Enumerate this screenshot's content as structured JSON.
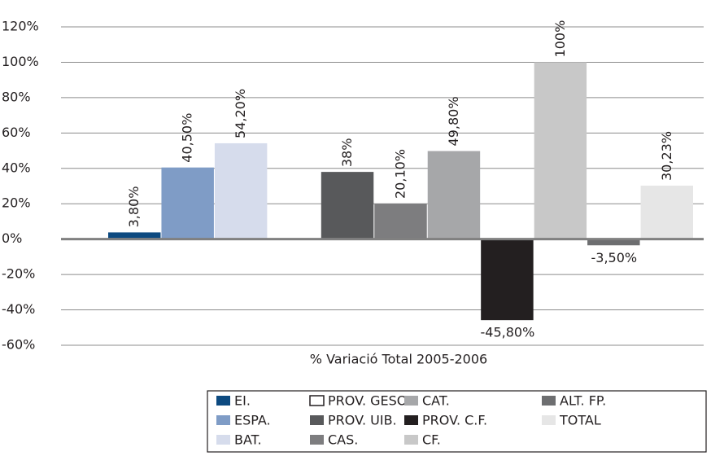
{
  "chart_data": {
    "type": "bar",
    "categories": [
      "% Variació Total 2005-2006"
    ],
    "series": [
      {
        "name": "EI.",
        "color": "#0d4a80",
        "values": [
          3.8
        ],
        "value_labels": [
          "3,80%"
        ]
      },
      {
        "name": "ESPA.",
        "color": "#7f9cc6",
        "values": [
          40.5
        ],
        "value_labels": [
          "40,50%"
        ]
      },
      {
        "name": "BAT.",
        "color": "#d6dcec",
        "values": [
          54.2
        ],
        "value_labels": [
          "54,20%"
        ]
      },
      {
        "name": "PROV. GESO.",
        "color": "#ffffff",
        "values": [
          null
        ],
        "value_labels": [
          null
        ]
      },
      {
        "name": "PROV. UIB.",
        "color": "#58595b",
        "values": [
          38
        ],
        "value_labels": [
          "38%"
        ]
      },
      {
        "name": "CAS.",
        "color": "#7d7d7f",
        "values": [
          20.1
        ],
        "value_labels": [
          "20,10%"
        ]
      },
      {
        "name": "CAT.",
        "color": "#a6a7a9",
        "values": [
          49.8
        ],
        "value_labels": [
          "49,80%"
        ]
      },
      {
        "name": "PROV. C.F.",
        "color": "#231f20",
        "values": [
          -45.8
        ],
        "value_labels": [
          "-45,80%"
        ]
      },
      {
        "name": "CF.",
        "color": "#c8c8c8",
        "values": [
          100
        ],
        "value_labels": [
          "100%"
        ]
      },
      {
        "name": "ALT. FP.",
        "color": "#6d6e70",
        "values": [
          -3.5
        ],
        "value_labels": [
          "-3,50%"
        ]
      },
      {
        "name": "TOTAL",
        "color": "#e6e6e6",
        "values": [
          30.23
        ],
        "value_labels": [
          "30,23%"
        ]
      }
    ],
    "ylim": [
      -60,
      120
    ],
    "yticks": [
      {
        "value": -60,
        "label": "-60%"
      },
      {
        "value": -40,
        "label": "-40%"
      },
      {
        "value": -20,
        "label": "-20%"
      },
      {
        "value": 0,
        "label": "0%"
      },
      {
        "value": 20,
        "label": "20%"
      },
      {
        "value": 40,
        "label": "40%"
      },
      {
        "value": 60,
        "label": "60%"
      },
      {
        "value": 80,
        "label": "80%"
      },
      {
        "value": 100,
        "label": "100%"
      },
      {
        "value": 120,
        "label": "120%"
      }
    ],
    "grid": true
  }
}
